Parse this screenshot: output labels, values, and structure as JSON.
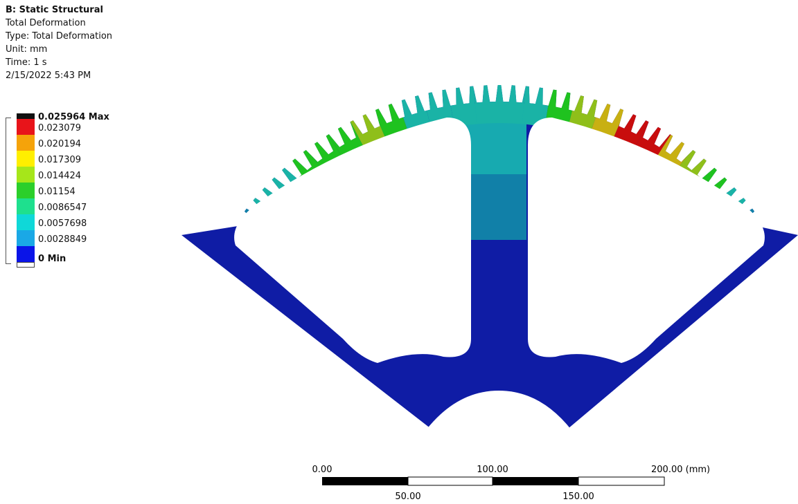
{
  "header": {
    "title": "B: Static Structural",
    "result_name": "Total Deformation",
    "type_line": "Type: Total Deformation",
    "unit_line": "Unit: mm",
    "time_line": "Time: 1 s",
    "timestamp": "2/15/2022 5:43 PM"
  },
  "legend": {
    "max_label": "0.025964 Max",
    "min_label": "0 Min",
    "levels": [
      {
        "label": "0.023079",
        "color": "#e8141a"
      },
      {
        "label": "0.020194",
        "color": "#f5a30a"
      },
      {
        "label": "0.017309",
        "color": "#ffef00"
      },
      {
        "label": "0.014424",
        "color": "#a6e61a"
      },
      {
        "label": "0.01154",
        "color": "#2bcf2b"
      },
      {
        "label": "0.0086547",
        "color": "#1ee08e"
      },
      {
        "label": "0.0057698",
        "color": "#0fd8d8"
      },
      {
        "label": "0.0028849",
        "color": "#1aa8e6"
      },
      {
        "label": "",
        "color": "#0a14e8"
      }
    ]
  },
  "model": {
    "colors": {
      "base": "#0f1ca5",
      "mid_band": "#1180a8",
      "upper_band": "#17aab0",
      "teal": "#1ab3a6",
      "green": "#1fc21f",
      "olive": "#8fbf1a",
      "yellow": "#c8b012",
      "red": "#c80d0d"
    }
  },
  "scale_bar": {
    "top_labels": [
      "0.00",
      "100.00",
      "200.00 (mm)"
    ],
    "bottom_labels": [
      "50.00",
      "150.00"
    ]
  }
}
